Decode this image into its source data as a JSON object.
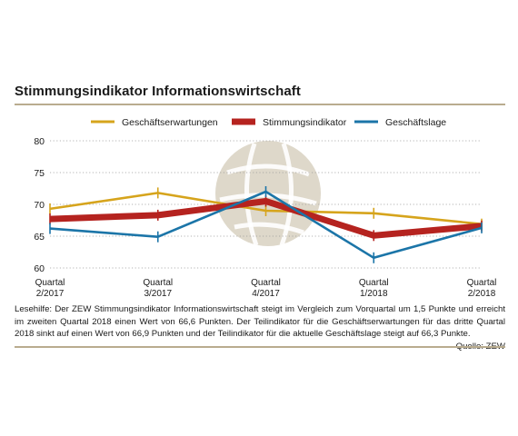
{
  "title": "Stimmungsindikator Informationswirtschaft",
  "note": "Lesehilfe: Der ZEW Stimmungsindikator Informationswirtschaft steigt im Vergleich zum Vorquartal um 1,5 Punkte und erreicht im zweiten Quartal 2018 einen Wert von 66,6 Punkten. Der Teilindikator für die Geschäftserwartungen für das dritte Quartal 2018 sinkt auf einen Wert von 66,9 Punkten und der Teilindikator für die aktuelle Geschäftslage steigt auf 66,3 Punkte.",
  "source": "Quelle: ZEW",
  "chart_data": {
    "type": "line",
    "categories": [
      [
        "Quartal",
        "2/2017"
      ],
      [
        "Quartal",
        "3/2017"
      ],
      [
        "Quartal",
        "4/2017"
      ],
      [
        "Quartal",
        "1/2018"
      ],
      [
        "Quartal",
        "2/2018"
      ]
    ],
    "ylim": [
      60,
      80
    ],
    "yticks": [
      60,
      65,
      70,
      75,
      80
    ],
    "grid": true,
    "legend_position": "top",
    "series": [
      {
        "name": "Geschäftserwartungen",
        "color": "#d6a41c",
        "width": "thin",
        "values": [
          69.3,
          71.8,
          69.0,
          68.6,
          66.9
        ]
      },
      {
        "name": "Stimmungsindikator",
        "color": "#b5231f",
        "width": "thick",
        "values": [
          67.7,
          68.3,
          70.5,
          65.1,
          66.6
        ]
      },
      {
        "name": "Geschäftslage",
        "color": "#1b75a8",
        "width": "thin",
        "values": [
          66.2,
          64.9,
          72.0,
          61.6,
          66.3
        ]
      }
    ]
  }
}
